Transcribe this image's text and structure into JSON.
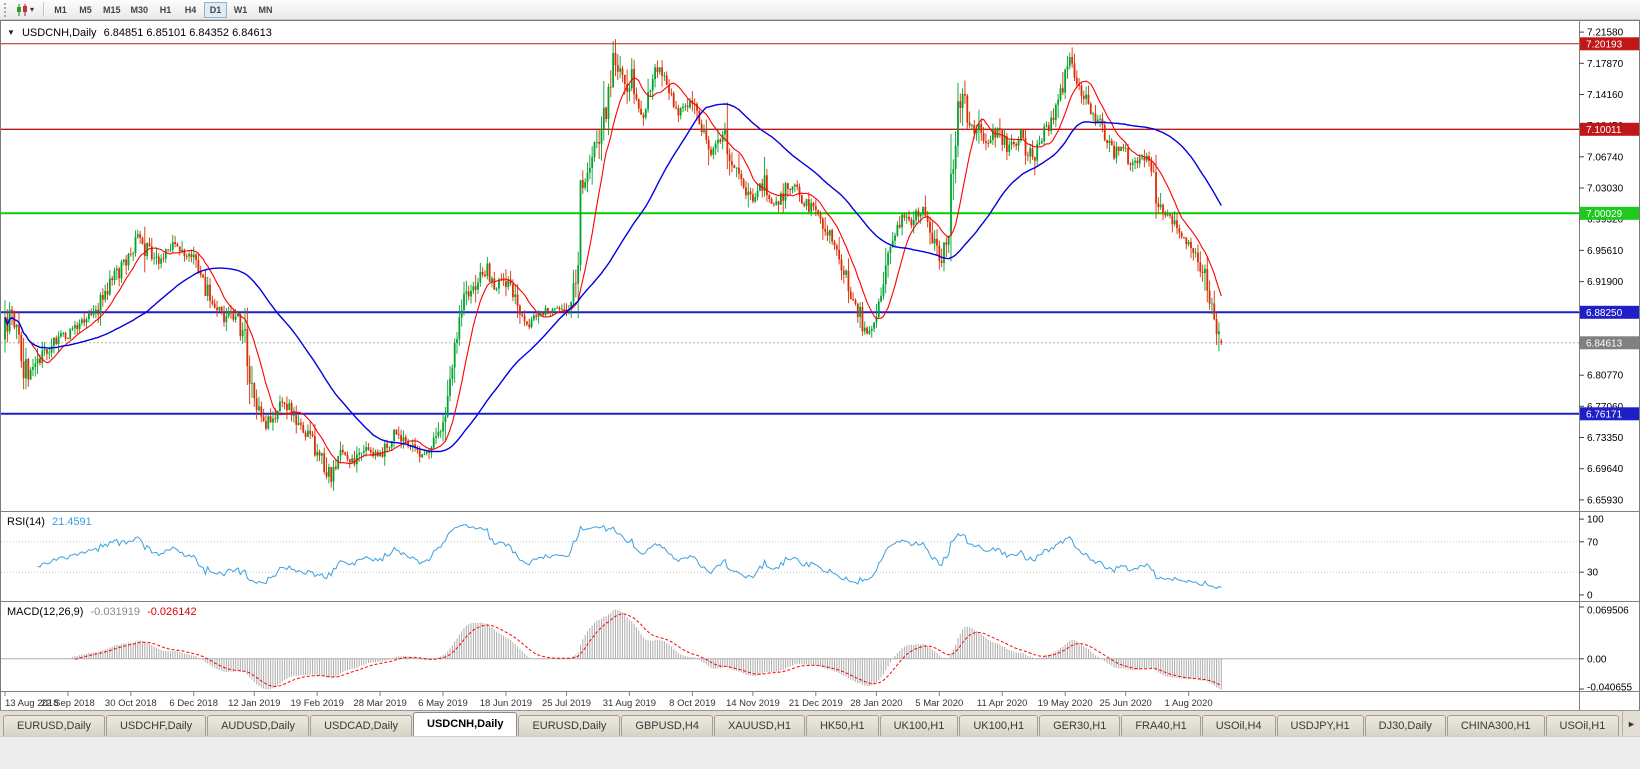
{
  "toolbar": {
    "caret": "▾",
    "timeframes": [
      "M1",
      "M5",
      "M15",
      "M30",
      "H1",
      "H4",
      "D1",
      "W1",
      "MN"
    ],
    "active_timeframe": "D1"
  },
  "chart": {
    "collapse_icon": "▼",
    "symbol_title": "USDCNH,Daily",
    "ohlc_line": "6.84851 6.85101 6.84352 6.84613"
  },
  "price_axis": {
    "min": 6.6461,
    "max": 7.229,
    "ticks": [
      "7.21580",
      "7.17870",
      "7.14160",
      "7.10450",
      "7.06740",
      "7.03030",
      "6.99320",
      "6.95610",
      "6.91900",
      "6.88190",
      "6.84480",
      "6.80770",
      "6.77060",
      "6.73350",
      "6.69640",
      "6.65930"
    ],
    "boxes": [
      {
        "label": "7.20193",
        "value": 7.20193,
        "color": "#c01818",
        "text_color": "#ffffff"
      },
      {
        "label": "7.10011",
        "value": 7.10011,
        "color": "#c01818",
        "text_color": "#ffffff"
      },
      {
        "label": "7.00029",
        "value": 7.00029,
        "color": "#1fca1f",
        "text_color": "#ffffff"
      },
      {
        "label": "6.88250",
        "value": 6.8825,
        "color": "#1f1fc8",
        "text_color": "#ffffff"
      },
      {
        "label": "6.84613",
        "value": 6.84613,
        "color": "#808080",
        "text_color": "#ffffff"
      },
      {
        "label": "6.76171",
        "value": 6.76171,
        "color": "#1f1fc8",
        "text_color": "#ffffff"
      }
    ]
  },
  "rsi": {
    "label": "RSI(14)",
    "value": "21.4591",
    "period": 14,
    "axis_ticks": [
      {
        "label": "100",
        "v": 100
      },
      {
        "label": "70",
        "v": 70
      },
      {
        "label": "30",
        "v": 30
      },
      {
        "label": "0",
        "v": 0
      }
    ],
    "levels": [
      70,
      30
    ]
  },
  "macd": {
    "label": "MACD(12,26,9)",
    "main_value": "-0.031919",
    "signal_value": "-0.026142",
    "axis_ticks": [
      {
        "label": "0.069506",
        "v": 0.069506
      },
      {
        "label": "0.00",
        "v": 0
      },
      {
        "label": "-0.040655",
        "v": -0.040655
      }
    ]
  },
  "dates": [
    {
      "label": "13 Aug 2018",
      "bar": 0
    },
    {
      "label": "22 Sep 2018",
      "bar": 27
    },
    {
      "label": "30 Oct 2018",
      "bar": 54
    },
    {
      "label": "6 Dec 2018",
      "bar": 81
    },
    {
      "label": "12 Jan 2019",
      "bar": 107
    },
    {
      "label": "19 Feb 2019",
      "bar": 134
    },
    {
      "label": "28 Mar 2019",
      "bar": 161
    },
    {
      "label": "6 May 2019",
      "bar": 188
    },
    {
      "label": "18 Jun 2019",
      "bar": 215
    },
    {
      "label": "25 Jul 2019",
      "bar": 241
    },
    {
      "label": "31 Aug 2019",
      "bar": 268
    },
    {
      "label": "8 Oct 2019",
      "bar": 295
    },
    {
      "label": "14 Nov 2019",
      "bar": 321
    },
    {
      "label": "21 Dec 2019",
      "bar": 348
    },
    {
      "label": "28 Jan 2020",
      "bar": 374
    },
    {
      "label": "5 Mar 2020",
      "bar": 401
    },
    {
      "label": "11 Apr 2020",
      "bar": 428
    },
    {
      "label": "19 May 2020",
      "bar": 455
    },
    {
      "label": "25 Jun 2020",
      "bar": 481
    },
    {
      "label": "1 Aug 2020",
      "bar": 508
    }
  ],
  "tab_bar": {
    "scroll_right_icon": "►",
    "active_index": 4,
    "tabs": [
      "EURUSD,Daily",
      "USDCHF,Daily",
      "AUDUSD,Daily",
      "USDCAD,Daily",
      "USDCNH,Daily",
      "EURUSD,Daily",
      "GBPUSD,H4",
      "XAUUSD,H1",
      "HK50,H1",
      "UK100,H1",
      "UK100,H1",
      "GER30,H1",
      "FRA40,H1",
      "USOil,H4",
      "USDJPY,H1",
      "DJ30,Daily",
      "CHINA300,H1",
      "USOil,H1"
    ]
  },
  "chart_data": {
    "type": "candlestick",
    "symbol": "USDCNH",
    "timeframe": "Daily",
    "title": "USDCNH,Daily",
    "ylim": [
      6.6461,
      7.229
    ],
    "bar_count": 523,
    "ohlc_current": {
      "open": 6.84851,
      "high": 6.85101,
      "low": 6.84352,
      "close": 6.84613
    },
    "last_ohlc": {
      "open": 6.84851,
      "high": 6.85101,
      "low": 6.84352,
      "close": 6.84613
    },
    "recent_low": 6.836,
    "levels": [
      {
        "value": 7.20193,
        "color": "#c01818",
        "width": 1,
        "dash": null,
        "type": "resistance"
      },
      {
        "value": 7.10011,
        "color": "#c01818",
        "width": 1.4,
        "dash": null,
        "type": "resistance"
      },
      {
        "value": 7.00029,
        "color": "#00d400",
        "width": 2,
        "dash": null,
        "type": "pivot"
      },
      {
        "value": 6.8825,
        "color": "#1f1fc8",
        "width": 2,
        "dash": null,
        "type": "support"
      },
      {
        "value": 6.76171,
        "color": "#1f1fc8",
        "width": 2,
        "dash": null,
        "type": "support"
      },
      {
        "value": 6.84613,
        "color": "#b8b8b8",
        "width": 1,
        "dash": "2,2",
        "type": "current-price"
      }
    ],
    "indicators": [
      {
        "name": "RSI",
        "period": 14,
        "current": 21.4591,
        "range": [
          0,
          100
        ]
      },
      {
        "name": "MACD",
        "fast": 12,
        "slow": 26,
        "signal": 9,
        "current_main": -0.031919,
        "current_signal": -0.026142
      }
    ],
    "ma_fast_period": 12,
    "ma_slow_period": 55,
    "colors": {
      "up": "#00a32e",
      "down": "#dd2c00",
      "ma_fast": "#ff0000",
      "ma_slow": "#0000e0",
      "rsi": "#3aa0e0",
      "macd_hist": "#ababab",
      "macd_signal": "#ff0000"
    },
    "price_waypoints": [
      [
        0,
        6.85
      ],
      [
        3,
        6.886
      ],
      [
        7,
        6.845
      ],
      [
        10,
        6.806
      ],
      [
        15,
        6.828
      ],
      [
        20,
        6.845
      ],
      [
        27,
        6.856
      ],
      [
        33,
        6.868
      ],
      [
        40,
        6.885
      ],
      [
        45,
        6.915
      ],
      [
        50,
        6.935
      ],
      [
        54,
        6.955
      ],
      [
        58,
        6.972
      ],
      [
        62,
        6.96
      ],
      [
        66,
        6.942
      ],
      [
        70,
        6.955
      ],
      [
        75,
        6.962
      ],
      [
        78,
        6.95
      ],
      [
        81,
        6.946
      ],
      [
        85,
        6.92
      ],
      [
        88,
        6.9
      ],
      [
        92,
        6.885
      ],
      [
        96,
        6.878
      ],
      [
        100,
        6.875
      ],
      [
        103,
        6.852
      ],
      [
        107,
        6.776
      ],
      [
        112,
        6.748
      ],
      [
        117,
        6.768
      ],
      [
        120,
        6.78
      ],
      [
        124,
        6.762
      ],
      [
        127,
        6.746
      ],
      [
        131,
        6.735
      ],
      [
        134,
        6.723
      ],
      [
        138,
        6.7
      ],
      [
        140,
        6.69
      ],
      [
        143,
        6.71
      ],
      [
        146,
        6.718
      ],
      [
        150,
        6.705
      ],
      [
        155,
        6.724
      ],
      [
        158,
        6.716
      ],
      [
        161,
        6.712
      ],
      [
        165,
        6.726
      ],
      [
        168,
        6.736
      ],
      [
        172,
        6.726
      ],
      [
        175,
        6.72
      ],
      [
        179,
        6.712
      ],
      [
        182,
        6.716
      ],
      [
        186,
        6.731
      ],
      [
        189,
        6.762
      ],
      [
        192,
        6.822
      ],
      [
        195,
        6.872
      ],
      [
        198,
        6.895
      ],
      [
        202,
        6.916
      ],
      [
        205,
        6.936
      ],
      [
        208,
        6.924
      ],
      [
        211,
        6.912
      ],
      [
        215,
        6.926
      ],
      [
        218,
        6.905
      ],
      [
        221,
        6.88
      ],
      [
        224,
        6.868
      ],
      [
        228,
        6.877
      ],
      [
        232,
        6.884
      ],
      [
        236,
        6.887
      ],
      [
        241,
        6.885
      ],
      [
        244,
        6.904
      ],
      [
        246,
        6.93
      ],
      [
        248,
        7.032
      ],
      [
        251,
        7.058
      ],
      [
        253,
        7.09
      ],
      [
        255,
        7.078
      ],
      [
        257,
        7.108
      ],
      [
        259,
        7.14
      ],
      [
        261,
        7.176
      ],
      [
        263,
        7.196
      ],
      [
        265,
        7.16
      ],
      [
        267,
        7.148
      ],
      [
        269,
        7.162
      ],
      [
        271,
        7.132
      ],
      [
        274,
        7.118
      ],
      [
        277,
        7.15
      ],
      [
        280,
        7.168
      ],
      [
        282,
        7.172
      ],
      [
        284,
        7.155
      ],
      [
        287,
        7.135
      ],
      [
        290,
        7.12
      ],
      [
        293,
        7.13
      ],
      [
        295,
        7.134
      ],
      [
        298,
        7.112
      ],
      [
        301,
        7.095
      ],
      [
        303,
        7.072
      ],
      [
        306,
        7.082
      ],
      [
        309,
        7.094
      ],
      [
        312,
        7.068
      ],
      [
        315,
        7.042
      ],
      [
        318,
        7.028
      ],
      [
        321,
        7.016
      ],
      [
        324,
        7.028
      ],
      [
        326,
        7.035
      ],
      [
        329,
        7.015
      ],
      [
        332,
        7.01
      ],
      [
        335,
        7.028
      ],
      [
        338,
        7.033
      ],
      [
        341,
        7.026
      ],
      [
        344,
        7.012
      ],
      [
        348,
        7.005
      ],
      [
        352,
        6.988
      ],
      [
        355,
        6.968
      ],
      [
        358,
        6.955
      ],
      [
        361,
        6.93
      ],
      [
        364,
        6.9
      ],
      [
        366,
        6.878
      ],
      [
        368,
        6.856
      ],
      [
        370,
        6.862
      ],
      [
        372,
        6.87
      ],
      [
        374,
        6.876
      ],
      [
        377,
        6.912
      ],
      [
        380,
        6.95
      ],
      [
        383,
        6.978
      ],
      [
        386,
        7.0
      ],
      [
        389,
        6.99
      ],
      [
        392,
        6.998
      ],
      [
        395,
        7.008
      ],
      [
        398,
        6.978
      ],
      [
        400,
        6.955
      ],
      [
        402,
        6.942
      ],
      [
        404,
        6.962
      ],
      [
        406,
        7.01
      ],
      [
        408,
        7.09
      ],
      [
        410,
        7.13
      ],
      [
        411,
        7.158
      ],
      [
        413,
        7.112
      ],
      [
        415,
        7.092
      ],
      [
        417,
        7.113
      ],
      [
        419,
        7.096
      ],
      [
        421,
        7.082
      ],
      [
        423,
        7.092
      ],
      [
        425,
        7.1
      ],
      [
        428,
        7.09
      ],
      [
        431,
        7.078
      ],
      [
        434,
        7.084
      ],
      [
        436,
        7.092
      ],
      [
        438,
        7.08
      ],
      [
        440,
        7.07
      ],
      [
        442,
        7.076
      ],
      [
        444,
        7.082
      ],
      [
        446,
        7.092
      ],
      [
        448,
        7.103
      ],
      [
        450,
        7.118
      ],
      [
        452,
        7.134
      ],
      [
        454,
        7.155
      ],
      [
        456,
        7.188
      ],
      [
        458,
        7.175
      ],
      [
        460,
        7.16
      ],
      [
        462,
        7.15
      ],
      [
        464,
        7.14
      ],
      [
        466,
        7.128
      ],
      [
        468,
        7.118
      ],
      [
        470,
        7.106
      ],
      [
        472,
        7.096
      ],
      [
        474,
        7.085
      ],
      [
        476,
        7.072
      ],
      [
        478,
        7.08
      ],
      [
        481,
        7.077
      ],
      [
        483,
        7.066
      ],
      [
        485,
        7.06
      ],
      [
        487,
        7.066
      ],
      [
        489,
        7.069
      ],
      [
        491,
        7.06
      ],
      [
        493,
        7.049
      ],
      [
        495,
        7.022
      ],
      [
        497,
        7.002
      ],
      [
        499,
        6.998
      ],
      [
        501,
        6.996
      ],
      [
        503,
        6.986
      ],
      [
        505,
        6.977
      ],
      [
        508,
        6.968
      ],
      [
        510,
        6.956
      ],
      [
        512,
        6.948
      ],
      [
        514,
        6.933
      ],
      [
        516,
        6.917
      ],
      [
        518,
        6.898
      ],
      [
        520,
        6.874
      ],
      [
        521,
        6.86
      ],
      [
        522,
        6.847
      ]
    ]
  }
}
